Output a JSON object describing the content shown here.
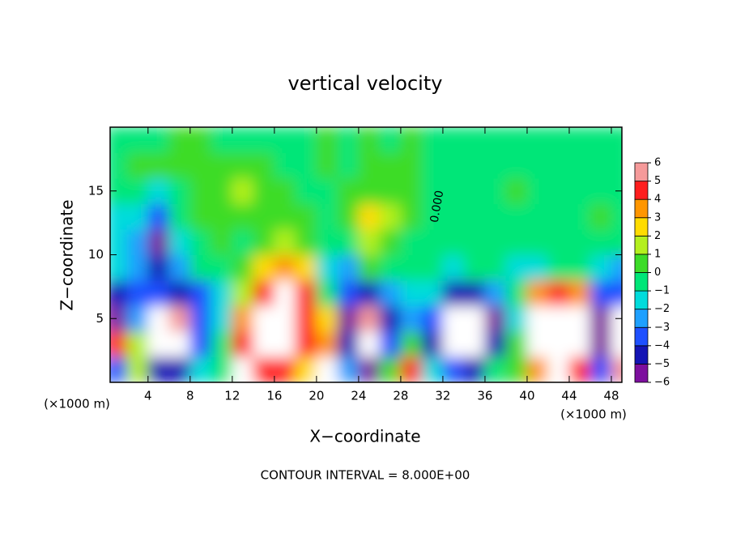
{
  "chart_data": {
    "type": "heatmap",
    "title": "vertical velocity",
    "x_label": "X−coordinate",
    "y_label": "Z−coordinate",
    "x_unit": "(×1000 m)",
    "footer": "CONTOUR INTERVAL = 8.000E+00",
    "annotation": "0.000",
    "xlim": [
      0.4,
      49
    ],
    "ylim": [
      0,
      20
    ],
    "xticks": [
      4,
      8,
      12,
      16,
      20,
      24,
      28,
      32,
      36,
      40,
      44,
      48
    ],
    "yticks": [
      5,
      10,
      15
    ],
    "x": [
      1,
      3,
      5,
      7,
      9,
      11,
      13,
      15,
      17,
      19,
      21,
      23,
      25,
      27,
      29,
      31,
      33,
      35,
      37,
      39,
      41,
      43,
      45,
      47,
      49
    ],
    "y": [
      1,
      3,
      5,
      7,
      9,
      11,
      13,
      15,
      17,
      19
    ],
    "z": [
      [
        -3,
        2,
        -4,
        -4,
        -1,
        0,
        8,
        5,
        5,
        3,
        8,
        -2,
        -5,
        1,
        5,
        -1,
        -3,
        -4,
        0,
        1,
        4,
        8,
        5,
        -3,
        6
      ],
      [
        5,
        2,
        8,
        8,
        -3,
        0,
        5,
        8,
        8,
        5,
        4,
        -4,
        8,
        -3,
        1,
        -4,
        8,
        8,
        -4,
        1,
        8,
        8,
        8,
        -5,
        8
      ],
      [
        -5,
        -2,
        8,
        6,
        -3,
        -1,
        4,
        8,
        8,
        5,
        3,
        -5,
        6,
        -4,
        -2,
        -3,
        8,
        8,
        -5,
        -1,
        8,
        8,
        8,
        -5,
        8
      ],
      [
        -4,
        -3,
        -3,
        -4,
        -3,
        -1,
        2,
        5,
        8,
        5,
        0,
        -3,
        -4,
        -2,
        -1,
        -1,
        -4,
        -4,
        -2,
        0,
        4,
        5,
        4,
        -3,
        -3
      ],
      [
        -1,
        -2,
        -4,
        -2,
        0,
        0,
        1,
        3,
        4,
        3,
        -1,
        -2,
        1,
        0,
        0,
        0,
        -1,
        0,
        0,
        -1,
        -1,
        0,
        0,
        -1,
        -2
      ],
      [
        -1,
        -2,
        -5,
        -1,
        0,
        1,
        0,
        1,
        2,
        1,
        0,
        0,
        2,
        1,
        0,
        0,
        0,
        0,
        0,
        0,
        0,
        0,
        0,
        0,
        0
      ],
      [
        -1,
        -1,
        -3,
        0,
        1,
        1,
        1,
        1,
        1,
        1,
        0,
        1,
        3,
        2,
        1,
        0,
        0,
        0,
        0,
        0,
        0,
        0,
        0,
        1,
        0
      ],
      [
        0,
        0,
        -1,
        0,
        1,
        1,
        2,
        1,
        1,
        0,
        0,
        1,
        1,
        1,
        1,
        0,
        0,
        0,
        0,
        1,
        0,
        0,
        0,
        0,
        0
      ],
      [
        0,
        1,
        1,
        1,
        1,
        1,
        1,
        1,
        0,
        0,
        1,
        0,
        1,
        1,
        1,
        0,
        0,
        0,
        0,
        0,
        0,
        0,
        0,
        0,
        0
      ],
      [
        0,
        0,
        0,
        1,
        1,
        0,
        0,
        0,
        0,
        0,
        1,
        0,
        1,
        0,
        1,
        0,
        0,
        0,
        0,
        0,
        0,
        0,
        0,
        0,
        0
      ]
    ],
    "levels": [
      -6,
      -5,
      -4,
      -3,
      -2,
      -1,
      0,
      1,
      2,
      3,
      4,
      5,
      6
    ],
    "level_labels": [
      "−6",
      "−5",
      "−4",
      "−3",
      "−2",
      "−1",
      "0",
      "1",
      "2",
      "3",
      "4",
      "5",
      "6"
    ],
    "colors": [
      "#7d0f9e",
      "#1414b4",
      "#1e50ff",
      "#1ea0ff",
      "#00dcdc",
      "#00e678",
      "#3cdc28",
      "#b4f01e",
      "#ffdc00",
      "#ff9600",
      "#ff1e1e",
      "#f59a9a"
    ],
    "over_color": "#ffffff"
  }
}
